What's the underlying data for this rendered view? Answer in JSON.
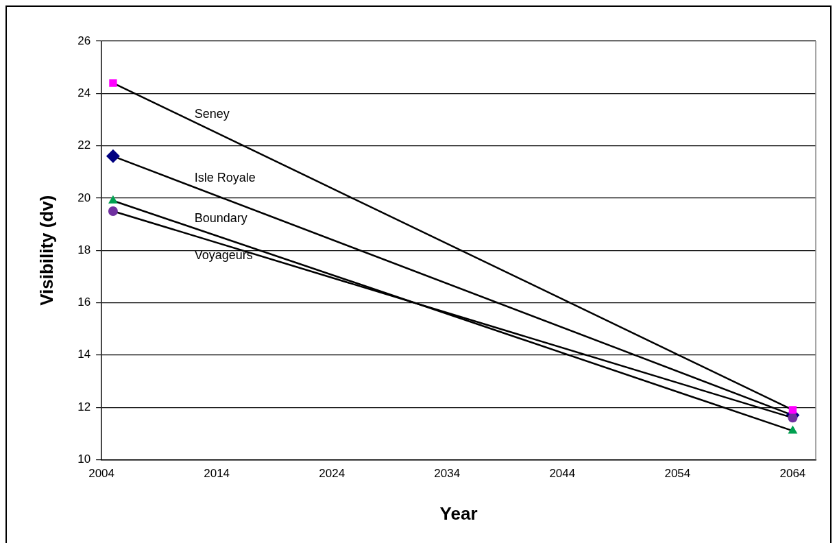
{
  "chart_data": {
    "type": "line",
    "xlabel": "Year",
    "ylabel": "Visibility (dv)",
    "x": [
      2005,
      2064
    ],
    "series": [
      {
        "name": "Seney",
        "color": "#ff00ff",
        "marker": "square",
        "values": [
          24.4,
          11.9
        ]
      },
      {
        "name": "Isle Royale",
        "color": "#000080",
        "marker": "diamond",
        "values": [
          21.6,
          11.7
        ]
      },
      {
        "name": "Boundary",
        "color": "#00a050",
        "marker": "triangle",
        "values": [
          19.9,
          11.1
        ]
      },
      {
        "name": "Voyageurs",
        "color": "#7030a0",
        "marker": "circle",
        "values": [
          19.5,
          11.6
        ]
      }
    ],
    "xlim": [
      2004,
      2066
    ],
    "xticks": [
      2004,
      2014,
      2024,
      2034,
      2044,
      2054,
      2064
    ],
    "ylim": [
      10,
      26
    ],
    "yticks": [
      10,
      12,
      14,
      16,
      18,
      20,
      22,
      24,
      26
    ],
    "grid": "y",
    "legend": false
  }
}
